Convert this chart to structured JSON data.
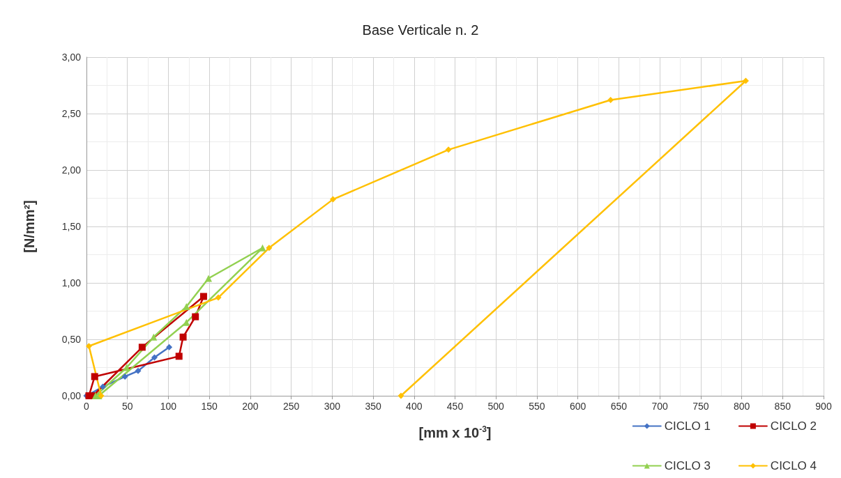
{
  "chart_data": {
    "type": "line",
    "title": "Base Verticale n. 2",
    "xlabel": "[mm x 10$^{-3}$]",
    "ylabel": "[N/mm²]",
    "xlim": [
      0,
      900
    ],
    "xticks": [
      0,
      50,
      100,
      150,
      200,
      250,
      300,
      350,
      400,
      450,
      500,
      550,
      600,
      650,
      700,
      750,
      800,
      850,
      900
    ],
    "ylim": [
      0,
      3
    ],
    "yticks": [
      {
        "value": 0,
        "label": "0,00"
      },
      {
        "value": 0.5,
        "label": "0,50"
      },
      {
        "value": 1,
        "label": "1,00"
      },
      {
        "value": 1.5,
        "label": "1,50"
      },
      {
        "value": 2,
        "label": "2,00"
      },
      {
        "value": 2.5,
        "label": "2,50"
      },
      {
        "value": 3,
        "label": "3,00"
      }
    ],
    "grid": true,
    "legend": "bottom right",
    "line_style": "solid",
    "series": [
      {
        "name": "CICLO 1",
        "color": "#4472c4",
        "marker": "diamond",
        "x": [
          0,
          20,
          47,
          63,
          83,
          101
        ],
        "values": [
          0,
          0.08,
          0.17,
          0.22,
          0.34,
          0.43
        ]
      },
      {
        "name": "CICLO 2",
        "color": "#c00000",
        "marker": "square",
        "x": [
          3,
          10,
          113,
          118,
          133,
          143,
          68,
          8
        ],
        "values": [
          0,
          0.17,
          0.35,
          0.52,
          0.7,
          0.88,
          0.43,
          0
        ]
      },
      {
        "name": "CICLO 3",
        "color": "#92d050",
        "marker": "triangle",
        "x": [
          11,
          49,
          82,
          122,
          149,
          215,
          122,
          15
        ],
        "values": [
          0,
          0.25,
          0.52,
          0.79,
          1.04,
          1.31,
          0.65,
          0
        ]
      },
      {
        "name": "CICLO 4",
        "color": "#ffc000",
        "marker": "diamond",
        "x": [
          18,
          3,
          161,
          223,
          301,
          442,
          640,
          805,
          384
        ],
        "values": [
          0,
          0.44,
          0.87,
          1.31,
          1.74,
          2.18,
          2.62,
          2.79,
          0
        ]
      }
    ]
  }
}
